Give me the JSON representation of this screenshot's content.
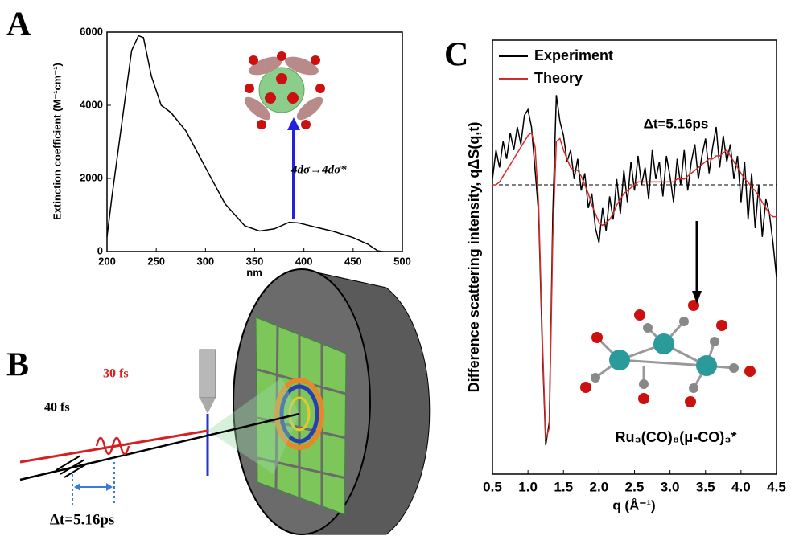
{
  "panel_labels": [
    "A",
    "B",
    "C"
  ],
  "diagram": {
    "pulse_labels": [
      "40 fs",
      "30 fs"
    ],
    "delay": "Δt=5.16ps"
  },
  "chart_data": [
    {
      "type": "line",
      "xlabel": "nm",
      "ylabel": "Extinction coefficient (M⁻¹cm⁻¹)",
      "x": [
        200,
        205,
        215,
        225,
        232,
        237,
        245,
        255,
        265,
        280,
        300,
        320,
        340,
        355,
        370,
        385,
        395,
        410,
        430,
        450,
        465,
        475,
        480
      ],
      "values": [
        400,
        1500,
        3500,
        5500,
        5900,
        5850,
        4800,
        4000,
        3800,
        3300,
        2300,
        1300,
        700,
        560,
        620,
        800,
        780,
        680,
        550,
        380,
        200,
        20,
        0
      ],
      "color": "#000000",
      "xlim": [
        200,
        500
      ],
      "ylim": [
        0,
        6000
      ],
      "xticks": [
        200,
        250,
        300,
        350,
        400,
        450,
        500
      ],
      "yticks": [
        0,
        2000,
        4000,
        6000
      ],
      "annotations": [
        "4dσ→4dσ*"
      ]
    },
    {
      "type": "line",
      "xlabel": "q (Å⁻¹)",
      "ylabel": "Difference scattering intensity, qΔS(q,t)",
      "x": [
        0.5,
        0.55,
        0.6,
        0.65,
        0.7,
        0.75,
        0.8,
        0.85,
        0.9,
        0.95,
        1.0,
        1.05,
        1.1,
        1.15,
        1.2,
        1.25,
        1.3,
        1.35,
        1.4,
        1.45,
        1.5,
        1.55,
        1.6,
        1.65,
        1.7,
        1.75,
        1.8,
        1.85,
        1.9,
        1.95,
        2.0,
        2.05,
        2.1,
        2.15,
        2.2,
        2.25,
        2.3,
        2.35,
        2.4,
        2.45,
        2.5,
        2.55,
        2.6,
        2.65,
        2.7,
        2.75,
        2.8,
        2.85,
        2.9,
        2.95,
        3.0,
        3.05,
        3.1,
        3.15,
        3.2,
        3.25,
        3.3,
        3.35,
        3.4,
        3.45,
        3.5,
        3.55,
        3.6,
        3.65,
        3.7,
        3.75,
        3.8,
        3.85,
        3.9,
        3.95,
        4.0,
        4.05,
        4.1,
        4.15,
        4.2,
        4.25,
        4.3,
        4.35,
        4.4,
        4.45,
        4.5
      ],
      "series": [
        {
          "name": "Experiment",
          "color": "#000000",
          "values": [
            0.02,
            0.12,
            0.06,
            0.15,
            0.09,
            0.18,
            0.12,
            0.2,
            0.14,
            0.24,
            0.26,
            0.2,
            0.05,
            -0.1,
            -0.55,
            -0.9,
            -0.82,
            -0.1,
            0.31,
            0.22,
            0.17,
            0.08,
            0.12,
            0.02,
            0.09,
            -0.02,
            0.04,
            -0.08,
            -0.03,
            -0.15,
            -0.2,
            -0.08,
            -0.16,
            -0.04,
            -0.12,
            0.02,
            -0.1,
            0.05,
            -0.06,
            0.08,
            -0.02,
            0.1,
            0.0,
            0.06,
            -0.05,
            0.12,
            0.02,
            0.08,
            -0.04,
            0.1,
            0.03,
            -0.06,
            0.09,
            0.0,
            0.12,
            -0.02,
            0.08,
            0.14,
            0.02,
            0.1,
            0.16,
            0.04,
            0.13,
            0.2,
            0.06,
            0.17,
            0.08,
            0.14,
            0.02,
            0.1,
            -0.06,
            0.08,
            -0.12,
            0.04,
            -0.15,
            0.0,
            -0.18,
            -0.05,
            -0.1,
            -0.2,
            -0.32
          ]
        },
        {
          "name": "Theory",
          "color": "#d42a2a",
          "values": [
            0.0,
            0.0,
            0.01,
            0.03,
            0.05,
            0.07,
            0.09,
            0.11,
            0.13,
            0.15,
            0.17,
            0.18,
            0.13,
            -0.07,
            -0.51,
            -0.88,
            -0.84,
            -0.18,
            0.15,
            0.16,
            0.12,
            0.09,
            0.06,
            0.05,
            0.05,
            0.03,
            0.0,
            -0.03,
            -0.07,
            -0.1,
            -0.13,
            -0.14,
            -0.13,
            -0.12,
            -0.1,
            -0.07,
            -0.05,
            -0.03,
            -0.02,
            -0.01,
            0.0,
            0.01,
            0.01,
            0.01,
            0.01,
            0.01,
            0.01,
            0.01,
            0.01,
            0.01,
            0.01,
            0.01,
            0.02,
            0.02,
            0.02,
            0.03,
            0.04,
            0.05,
            0.06,
            0.07,
            0.08,
            0.09,
            0.09,
            0.1,
            0.1,
            0.11,
            0.12,
            0.1,
            0.08,
            0.06,
            0.04,
            0.02,
            0.01,
            -0.01,
            -0.02,
            -0.04,
            -0.06,
            -0.08,
            -0.1,
            -0.11,
            -0.11
          ]
        }
      ],
      "xlim": [
        0.5,
        4.5
      ],
      "ylim": [
        -1,
        0.5
      ],
      "xticks": [
        0.5,
        {
          "value": 1,
          "label": "1.0"
        },
        1.5,
        {
          "value": 2,
          "label": "2.0"
        },
        2.5,
        {
          "value": 3,
          "label": "3.0"
        },
        3.5,
        {
          "value": 4,
          "label": "4.0"
        },
        4.5
      ],
      "reference_line": 0,
      "legend": "top-left",
      "annotations": [
        "Δt=5.16ps",
        "Ru₃(CO)₈(μ-CO)₃*"
      ]
    }
  ]
}
